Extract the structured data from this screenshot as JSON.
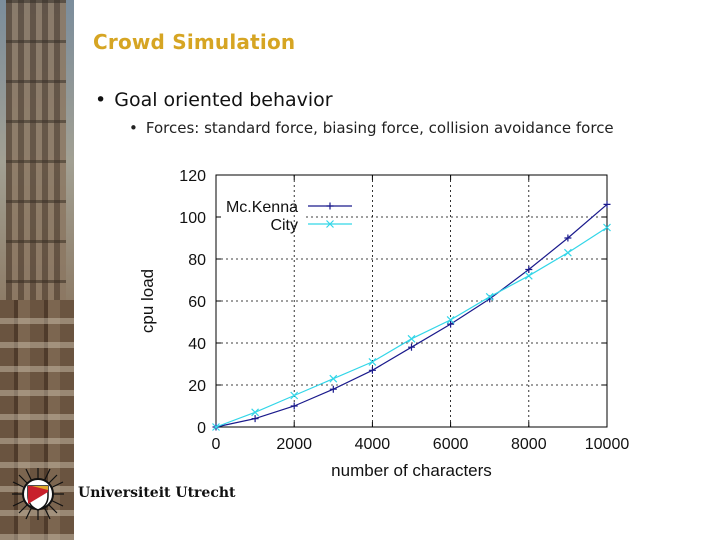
{
  "slide": {
    "title": "Crowd Simulation",
    "bullet": "Goal oriented behavior",
    "sub_bullet": "Forces: standard force, biasing force, collision avoidance force",
    "university": "Universiteit Utrecht"
  },
  "colors": {
    "title": "#d6a523",
    "mckenna": "#1a1a8c",
    "city": "#33d6e8"
  },
  "chart_data": {
    "type": "line",
    "title": "",
    "xlabel": "number of characters",
    "ylabel": "cpu load",
    "xlim": [
      0,
      10000
    ],
    "ylim": [
      0,
      120
    ],
    "xticks": [
      0,
      2000,
      4000,
      6000,
      8000,
      10000
    ],
    "yticks": [
      0,
      20,
      40,
      60,
      80,
      100,
      120
    ],
    "grid": true,
    "legend_position": "top-left",
    "x": [
      0,
      1000,
      2000,
      3000,
      4000,
      5000,
      6000,
      7000,
      8000,
      9000,
      10000
    ],
    "series": [
      {
        "name": "Mc.Kenna",
        "marker": "+",
        "values": [
          0,
          4,
          10,
          18,
          27,
          38,
          49,
          61,
          75,
          90,
          106
        ]
      },
      {
        "name": "City",
        "marker": "x",
        "values": [
          0,
          7,
          15,
          23,
          31,
          42,
          51,
          62,
          72,
          83,
          95
        ]
      }
    ]
  }
}
